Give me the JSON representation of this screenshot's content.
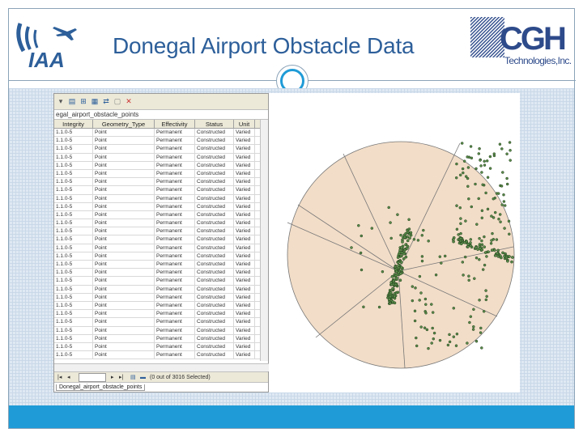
{
  "slide": {
    "title": "Donegal Airport Obstacle Data",
    "colors": {
      "title": "#2d5f9a",
      "accent": "#1f9bd7",
      "frame": "#8aa3b8",
      "map_fill": "#f2ddc8",
      "point_fill": "#5a8c4a"
    }
  },
  "logos": {
    "left": {
      "name": "IAA",
      "text": "IAA"
    },
    "right": {
      "name": "CGH Technologies",
      "text_main": "CGH",
      "text_sub": "Technologies,Inc."
    }
  },
  "table_window": {
    "table_name": "egal_airport_obstacle_points",
    "columns": [
      "Integrity",
      "Geometry_Type",
      "Effectivity",
      "Status",
      "Unit"
    ],
    "rows": [
      [
        "1.1.0-5",
        "Point",
        "Permanent",
        "Constructed",
        "Varied"
      ],
      [
        "1.1.0-5",
        "Point",
        "Permanent",
        "Constructed",
        "Varied"
      ],
      [
        "1.1.0-5",
        "Point",
        "Permanent",
        "Constructed",
        "Varied"
      ],
      [
        "1.1.0-5",
        "Point",
        "Permanent",
        "Constructed",
        "Varied"
      ],
      [
        "1.1.0-5",
        "Point",
        "Permanent",
        "Constructed",
        "Varied"
      ],
      [
        "1.1.0-5",
        "Point",
        "Permanent",
        "Constructed",
        "Varied"
      ],
      [
        "1.1.0-5",
        "Point",
        "Permanent",
        "Constructed",
        "Varied"
      ],
      [
        "1.1.0-5",
        "Point",
        "Permanent",
        "Constructed",
        "Varied"
      ],
      [
        "1.1.0-5",
        "Point",
        "Permanent",
        "Constructed",
        "Varied"
      ],
      [
        "1.1.0-5",
        "Point",
        "Permanent",
        "Constructed",
        "Varied"
      ],
      [
        "1.1.0-5",
        "Point",
        "Permanent",
        "Constructed",
        "Varied"
      ],
      [
        "1.1.0-5",
        "Point",
        "Permanent",
        "Constructed",
        "Varied"
      ],
      [
        "1.1.0-5",
        "Point",
        "Permanent",
        "Constructed",
        "Varied"
      ],
      [
        "1.1.0-5",
        "Point",
        "Permanent",
        "Constructed",
        "Varied"
      ],
      [
        "1.1.0-5",
        "Point",
        "Permanent",
        "Constructed",
        "Varied"
      ],
      [
        "1.1.0-5",
        "Point",
        "Permanent",
        "Constructed",
        "Varied"
      ],
      [
        "1.1.0-5",
        "Point",
        "Permanent",
        "Constructed",
        "Varied"
      ],
      [
        "1.1.0-5",
        "Point",
        "Permanent",
        "Constructed",
        "Varied"
      ],
      [
        "1.1.0-5",
        "Point",
        "Permanent",
        "Constructed",
        "Varied"
      ],
      [
        "1.1.0-5",
        "Point",
        "Permanent",
        "Constructed",
        "Varied"
      ],
      [
        "1.1.0-5",
        "Point",
        "Permanent",
        "Constructed",
        "Varied"
      ],
      [
        "1.1.0-5",
        "Point",
        "Permanent",
        "Constructed",
        "Varied"
      ],
      [
        "1.1.0-5",
        "Point",
        "Permanent",
        "Constructed",
        "Varied"
      ],
      [
        "1.1.0-5",
        "Point",
        "Permanent",
        "Constructed",
        "Varied"
      ],
      [
        "1.1.0-5",
        "Point",
        "Permanent",
        "Constructed",
        "Varied"
      ],
      [
        "1.1.0-5",
        "Point",
        "Permanent",
        "Constructed",
        "Varied"
      ],
      [
        "1.1.0-5",
        "Point",
        "Permanent",
        "Constructed",
        "Varied"
      ],
      [
        "1.1.0-5",
        "Point",
        "Permanent",
        "Constructed",
        "Varied"
      ]
    ],
    "nav": {
      "record_value": "",
      "status": "(0 out of 3016 Selected)"
    },
    "tab_label": "Donegal_airport_obstacle_points"
  }
}
